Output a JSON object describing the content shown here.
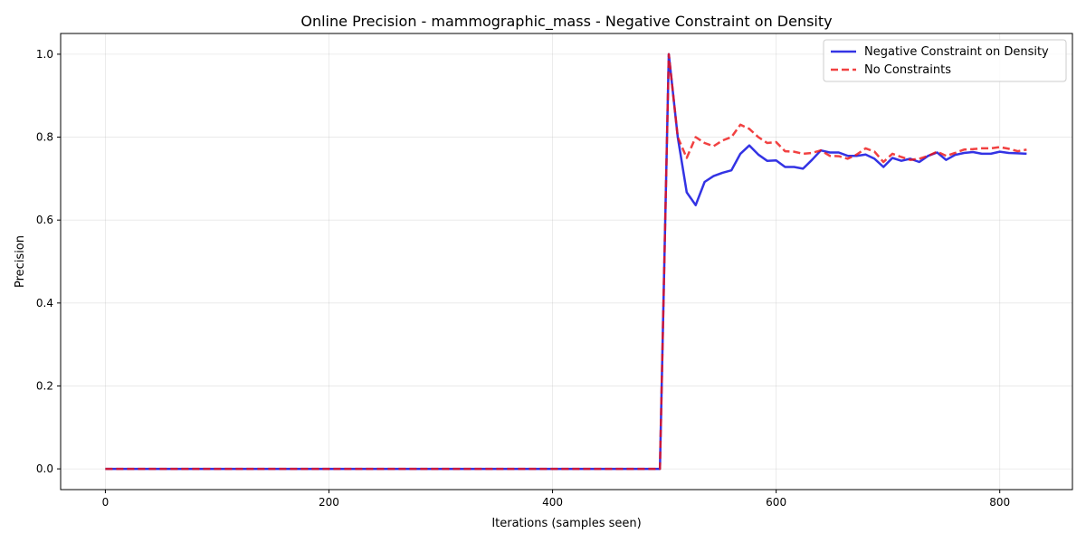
{
  "chart_data": {
    "type": "line",
    "title": "Online Precision - mammographic_mass - Negative Constraint on Density",
    "xlabel": "Iterations (samples seen)",
    "ylabel": "Precision",
    "xlim": [
      -40,
      865
    ],
    "ylim": [
      -0.05,
      1.05
    ],
    "xticks": [
      0,
      200,
      400,
      600,
      800
    ],
    "yticks": [
      0.0,
      0.2,
      0.4,
      0.6,
      0.8,
      1.0
    ],
    "xtick_labels": [
      "0",
      "200",
      "400",
      "600",
      "800"
    ],
    "ytick_labels": [
      "0.0",
      "0.2",
      "0.4",
      "0.6",
      "0.8",
      "1.0"
    ],
    "grid": true,
    "legend_position": "top-right",
    "x": [
      0,
      496,
      504,
      512,
      520,
      528,
      536,
      544,
      552,
      560,
      568,
      576,
      584,
      592,
      600,
      608,
      616,
      624,
      632,
      640,
      648,
      656,
      664,
      672,
      680,
      688,
      696,
      704,
      712,
      720,
      728,
      736,
      744,
      752,
      760,
      768,
      776,
      784,
      792,
      800,
      808,
      816,
      824
    ],
    "series": [
      {
        "name": "Negative Constraint on Density",
        "color": "#0000dd",
        "style": "solid",
        "values": [
          0.0,
          0.0,
          1.0,
          0.8,
          0.667,
          0.636,
          0.692,
          0.706,
          0.714,
          0.72,
          0.76,
          0.78,
          0.758,
          0.743,
          0.744,
          0.728,
          0.728,
          0.724,
          0.745,
          0.768,
          0.763,
          0.763,
          0.755,
          0.755,
          0.758,
          0.748,
          0.728,
          0.75,
          0.743,
          0.748,
          0.74,
          0.755,
          0.763,
          0.745,
          0.757,
          0.762,
          0.764,
          0.76,
          0.76,
          0.765,
          0.762,
          0.761,
          0.76
        ]
      },
      {
        "name": "No Constraints",
        "color": "#ee1111",
        "style": "dashed",
        "values": [
          0.0,
          0.0,
          1.0,
          0.8,
          0.75,
          0.8,
          0.786,
          0.778,
          0.792,
          0.8,
          0.83,
          0.82,
          0.8,
          0.786,
          0.788,
          0.766,
          0.765,
          0.76,
          0.762,
          0.768,
          0.755,
          0.754,
          0.748,
          0.758,
          0.773,
          0.765,
          0.74,
          0.76,
          0.752,
          0.745,
          0.748,
          0.755,
          0.765,
          0.755,
          0.762,
          0.77,
          0.771,
          0.773,
          0.773,
          0.776,
          0.772,
          0.766,
          0.77
        ]
      }
    ]
  }
}
